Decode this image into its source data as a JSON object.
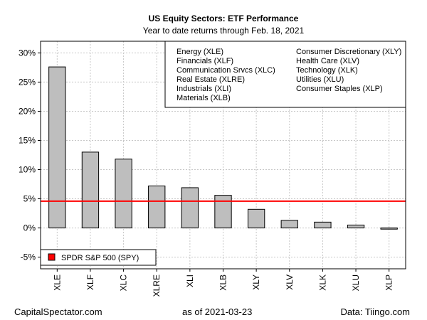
{
  "chart_data": {
    "type": "bar",
    "title": "US Equity Sectors: ETF Performance",
    "subtitle": "Year to date returns through Feb. 18, 2021",
    "categories": [
      "XLE",
      "XLF",
      "XLC",
      "XLRE",
      "XLI",
      "XLB",
      "XLY",
      "XLV",
      "XLK",
      "XLU",
      "XLP"
    ],
    "values": [
      27.6,
      13.0,
      11.8,
      7.2,
      6.9,
      5.6,
      3.2,
      1.3,
      1.0,
      0.5,
      -0.2
    ],
    "ylim": [
      -7,
      32
    ],
    "yticks": [
      -5,
      0,
      5,
      10,
      15,
      20,
      25,
      30
    ],
    "ytick_labels": [
      "-5%",
      "0%",
      "5%",
      "10%",
      "15%",
      "20%",
      "25%",
      "30%"
    ],
    "grid": true,
    "bar_color": "#bebebe",
    "reference_line": {
      "label": "SPDR S&P 500 (SPY)",
      "value": 4.6,
      "color": "#ff0000"
    },
    "legend_entries": {
      "left": [
        "Energy (XLE)",
        "Financials (XLF)",
        "Communication Srvcs (XLC)",
        "Real Estate (XLRE)",
        "Industrials (XLI)",
        "Materials (XLB)"
      ],
      "right": [
        "Consumer Discretionary (XLY)",
        "Health Care (XLV)",
        "Technology (XLK)",
        "Utilities (XLU)",
        "Consumer Staples (XLP)"
      ]
    },
    "legend_position": "top-right",
    "xlabel": "",
    "ylabel": ""
  },
  "footer": {
    "left": "CapitalSpectator.com",
    "mid": "as of   2021-03-23",
    "right": "Data: Tiingo.com"
  }
}
